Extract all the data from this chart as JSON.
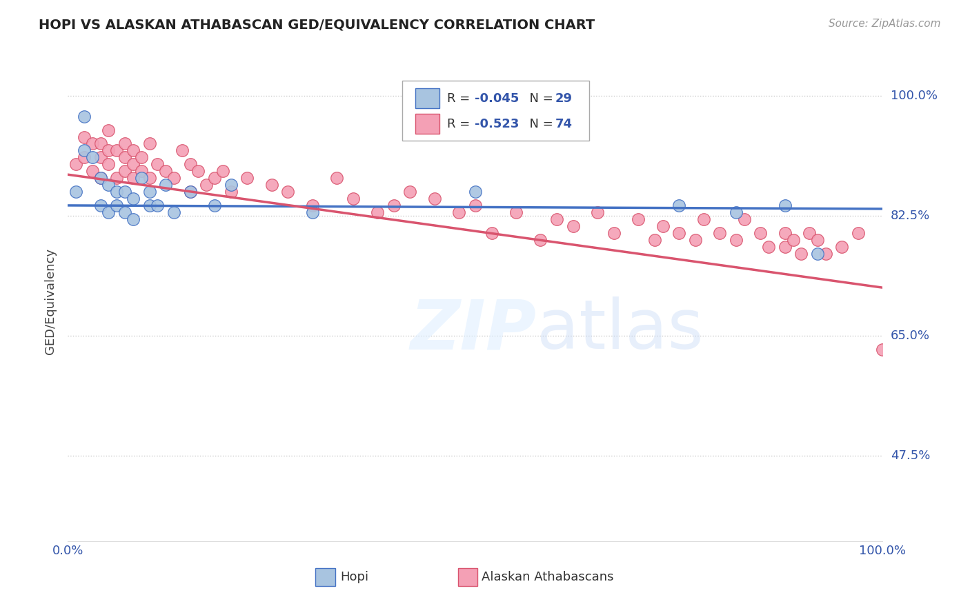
{
  "title": "HOPI VS ALASKAN ATHABASCAN GED/EQUIVALENCY CORRELATION CHART",
  "source": "Source: ZipAtlas.com",
  "ylabel": "GED/Equivalency",
  "xlim": [
    0,
    1
  ],
  "ylim": [
    0.35,
    1.05
  ],
  "yticks": [
    0.475,
    0.65,
    0.825,
    1.0
  ],
  "ytick_labels": [
    "47.5%",
    "65.0%",
    "82.5%",
    "100.0%"
  ],
  "xticks": [
    0.0,
    0.25,
    0.5,
    0.75,
    1.0
  ],
  "xtick_labels": [
    "0.0%",
    "",
    "",
    "",
    "100.0%"
  ],
  "hopi_color": "#a8c4e0",
  "athabascan_color": "#f4a0b5",
  "hopi_line_color": "#4472c4",
  "athabascan_line_color": "#d9546e",
  "grid_color": "#cccccc",
  "background_color": "#ffffff",
  "hopi_x": [
    0.01,
    0.02,
    0.02,
    0.03,
    0.04,
    0.04,
    0.05,
    0.05,
    0.06,
    0.06,
    0.07,
    0.07,
    0.08,
    0.08,
    0.09,
    0.1,
    0.1,
    0.11,
    0.12,
    0.13,
    0.15,
    0.18,
    0.2,
    0.3,
    0.5,
    0.75,
    0.82,
    0.88,
    0.92
  ],
  "hopi_y": [
    0.86,
    0.97,
    0.92,
    0.91,
    0.88,
    0.84,
    0.83,
    0.87,
    0.84,
    0.86,
    0.83,
    0.86,
    0.85,
    0.82,
    0.88,
    0.84,
    0.86,
    0.84,
    0.87,
    0.83,
    0.86,
    0.84,
    0.87,
    0.83,
    0.86,
    0.84,
    0.83,
    0.84,
    0.77
  ],
  "ath_x": [
    0.01,
    0.02,
    0.02,
    0.03,
    0.03,
    0.04,
    0.04,
    0.04,
    0.05,
    0.05,
    0.05,
    0.06,
    0.06,
    0.07,
    0.07,
    0.07,
    0.08,
    0.08,
    0.08,
    0.09,
    0.09,
    0.1,
    0.1,
    0.11,
    0.12,
    0.13,
    0.14,
    0.15,
    0.15,
    0.16,
    0.17,
    0.18,
    0.19,
    0.2,
    0.22,
    0.25,
    0.27,
    0.3,
    0.33,
    0.35,
    0.38,
    0.4,
    0.42,
    0.45,
    0.48,
    0.5,
    0.52,
    0.55,
    0.58,
    0.6,
    0.62,
    0.65,
    0.67,
    0.7,
    0.72,
    0.73,
    0.75,
    0.77,
    0.78,
    0.8,
    0.82,
    0.83,
    0.85,
    0.86,
    0.88,
    0.88,
    0.89,
    0.9,
    0.91,
    0.92,
    0.93,
    0.95,
    0.97,
    1.0
  ],
  "ath_y": [
    0.9,
    0.94,
    0.91,
    0.93,
    0.89,
    0.91,
    0.88,
    0.93,
    0.9,
    0.92,
    0.95,
    0.88,
    0.92,
    0.91,
    0.89,
    0.93,
    0.9,
    0.88,
    0.92,
    0.89,
    0.91,
    0.88,
    0.93,
    0.9,
    0.89,
    0.88,
    0.92,
    0.9,
    0.86,
    0.89,
    0.87,
    0.88,
    0.89,
    0.86,
    0.88,
    0.87,
    0.86,
    0.84,
    0.88,
    0.85,
    0.83,
    0.84,
    0.86,
    0.85,
    0.83,
    0.84,
    0.8,
    0.83,
    0.79,
    0.82,
    0.81,
    0.83,
    0.8,
    0.82,
    0.79,
    0.81,
    0.8,
    0.79,
    0.82,
    0.8,
    0.79,
    0.82,
    0.8,
    0.78,
    0.8,
    0.78,
    0.79,
    0.77,
    0.8,
    0.79,
    0.77,
    0.78,
    0.8,
    0.63
  ],
  "hopi_line_start_y": 0.84,
  "hopi_line_end_y": 0.835,
  "ath_line_start_y": 0.885,
  "ath_line_end_y": 0.72,
  "legend_hopi_R": "R = -0.045",
  "legend_hopi_N": "N = 29",
  "legend_ath_R": "R = -0.523",
  "legend_ath_N": "N = 74",
  "bottom_label_hopi": "Hopi",
  "bottom_label_ath": "Alaskan Athabascans"
}
